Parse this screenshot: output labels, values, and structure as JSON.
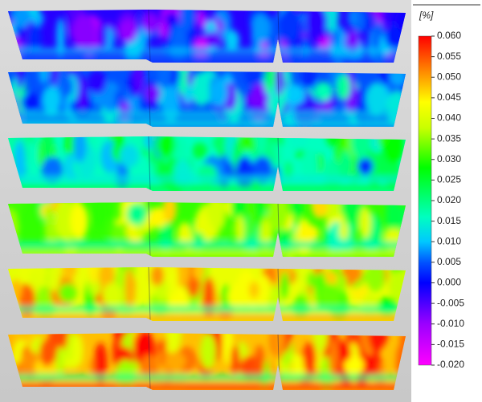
{
  "colorbar": {
    "unit": "[%]",
    "ticks": [
      {
        "value": 0.06,
        "label": "0.060"
      },
      {
        "value": 0.055,
        "label": "0.055"
      },
      {
        "value": 0.05,
        "label": "0.050"
      },
      {
        "value": 0.045,
        "label": "0.045"
      },
      {
        "value": 0.04,
        "label": "0.040"
      },
      {
        "value": 0.035,
        "label": "0.035"
      },
      {
        "value": 0.03,
        "label": "0.030"
      },
      {
        "value": 0.025,
        "label": "0.025"
      },
      {
        "value": 0.02,
        "label": "0.020"
      },
      {
        "value": 0.015,
        "label": "0.015"
      },
      {
        "value": 0.01,
        "label": "0.010"
      },
      {
        "value": 0.005,
        "label": "0.005"
      },
      {
        "value": 0,
        "label": "0.000"
      },
      {
        "value": -0.005,
        "label": "-0.005"
      },
      {
        "value": -0.01,
        "label": "-0.010"
      },
      {
        "value": -0.015,
        "label": "-0.015"
      },
      {
        "value": -0.02,
        "label": "-0.020"
      }
    ]
  }
}
